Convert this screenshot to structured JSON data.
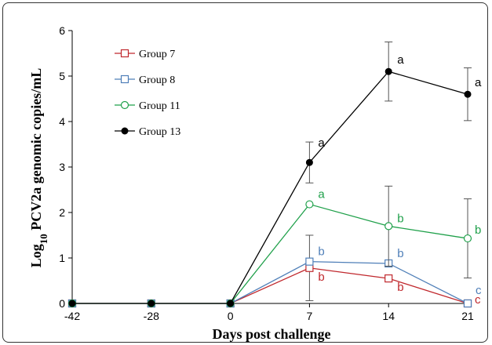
{
  "chart_data": {
    "type": "line",
    "xlabel": "Days post challenge",
    "ylabel_parts": {
      "base": "Log",
      "sub": "10",
      "rest": " PCV2a genomic copies/mL"
    },
    "x": [
      -42,
      -28,
      0,
      7,
      14,
      21
    ],
    "x_tick_labels": [
      "-42",
      "-28",
      "0",
      "7",
      "14",
      "21"
    ],
    "y_ticks": [
      0,
      1,
      2,
      3,
      4,
      5,
      6
    ],
    "ylim": [
      0,
      6
    ],
    "legend_position": "top-left",
    "series": [
      {
        "name": "Group 7",
        "color": "#c0282d",
        "marker": "square-open",
        "values": [
          0,
          0,
          0,
          0.78,
          0.55,
          0
        ],
        "err": [
          0,
          0,
          0,
          0.72,
          0,
          0
        ],
        "labels": [
          "",
          "",
          "",
          "b",
          "b",
          "c"
        ]
      },
      {
        "name": "Group 8",
        "color": "#4f7fb8",
        "marker": "square-open",
        "values": [
          0,
          0,
          0,
          0.92,
          0.88,
          0
        ],
        "err": [
          0,
          0,
          0,
          0,
          0,
          0
        ],
        "labels": [
          "",
          "",
          "",
          "b",
          "b",
          "c"
        ]
      },
      {
        "name": "Group 11",
        "color": "#1fa04a",
        "marker": "circle-open",
        "values": [
          0,
          0,
          0,
          2.18,
          1.7,
          1.43
        ],
        "err": [
          0,
          0,
          0,
          0,
          0.88,
          0.87
        ],
        "labels": [
          "",
          "",
          "",
          "a",
          "b",
          "b"
        ]
      },
      {
        "name": "Group 13",
        "color": "#000000",
        "marker": "circle-filled",
        "values": [
          0,
          0,
          0,
          3.1,
          5.1,
          4.6
        ],
        "err": [
          0,
          0,
          0,
          0.45,
          0.65,
          0.58
        ],
        "labels": [
          "",
          "",
          "",
          "a",
          "a",
          "a"
        ]
      }
    ]
  }
}
